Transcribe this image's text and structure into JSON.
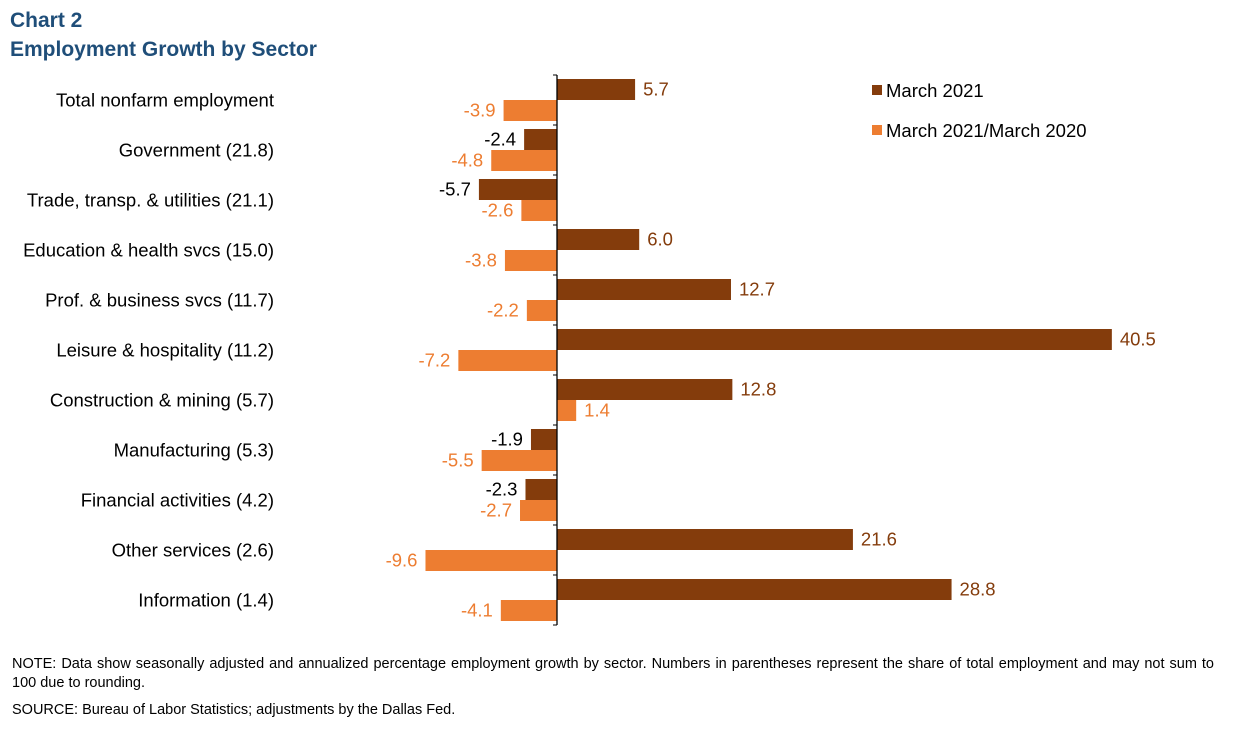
{
  "chart_data": {
    "type": "bar",
    "orientation": "horizontal",
    "title": "Chart 2",
    "subtitle": "Employment Growth by Sector",
    "categories": [
      "Total nonfarm employment",
      "Government (21.8)",
      "Trade, transp. & utilities (21.1)",
      "Education & health svcs (15.0)",
      "Prof. & business svcs (11.7)",
      "Leisure & hospitality (11.2)",
      "Construction & mining (5.7)",
      "Manufacturing (5.3)",
      "Financial activities (4.2)",
      "Other services (2.6)",
      "Information (1.4)"
    ],
    "series": [
      {
        "name": "March 2021",
        "color": "#843c0c",
        "values": [
          5.7,
          -2.4,
          -5.7,
          6.0,
          12.7,
          40.5,
          12.8,
          -1.9,
          -2.3,
          21.6,
          28.8
        ],
        "labels": [
          "5.7",
          "-2.4",
          "-5.7",
          "6.0",
          "12.7",
          "40.5",
          "12.8",
          "-1.9",
          "-2.3",
          "21.6",
          "28.8"
        ]
      },
      {
        "name": "March 2021/March 2020",
        "color": "#ed7d31",
        "values": [
          -3.9,
          -4.8,
          -2.6,
          -3.8,
          -2.2,
          -7.2,
          1.4,
          -5.5,
          -2.7,
          -9.6,
          -4.1
        ],
        "labels": [
          "-3.9",
          "-4.8",
          "-2.6",
          "-3.8",
          "-2.2",
          "-7.2",
          "1.4",
          "-5.5",
          "-2.7",
          "-9.6",
          "-4.1"
        ]
      }
    ],
    "xlim": [
      -10,
      42
    ],
    "grid": false,
    "legend_position": "top-right"
  },
  "footer": {
    "note": "NOTE: Data show seasonally adjusted and annualized percentage employment growth by sector. Numbers in parentheses represent the share of total employment and may not sum to 100 due to rounding.",
    "source": "SOURCE: Bureau of Labor Statistics; adjustments by the Dallas Fed."
  }
}
